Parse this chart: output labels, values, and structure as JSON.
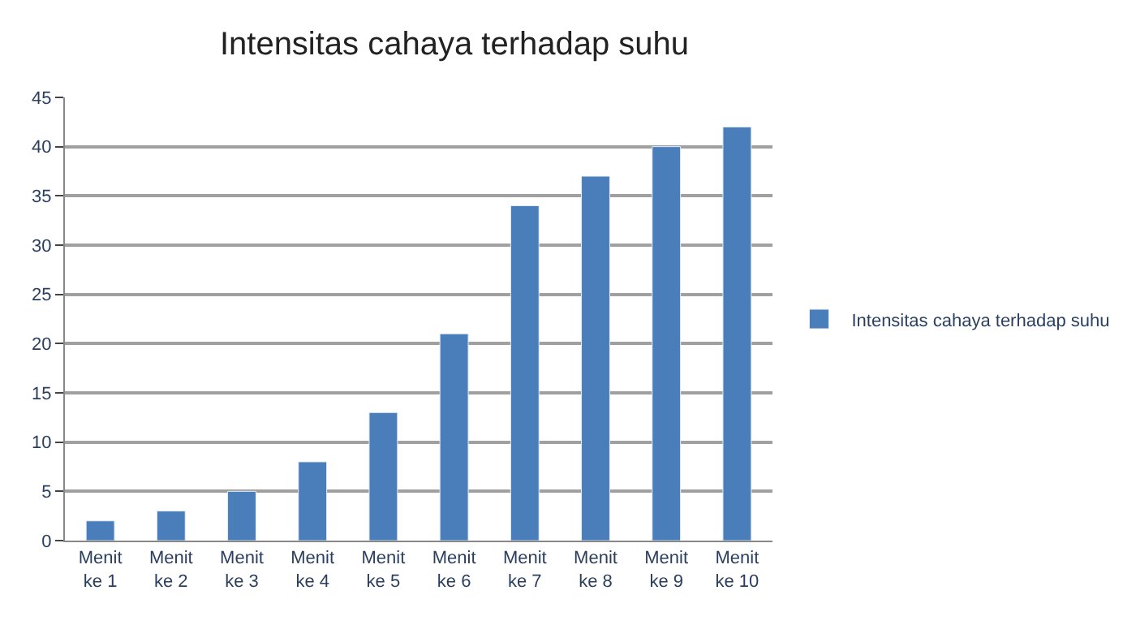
{
  "chart_data": {
    "type": "bar",
    "title": "Intensitas cahaya terhadap suhu",
    "categories": [
      "Menit ke 1",
      "Menit ke 2",
      "Menit ke 3",
      "Menit ke 4",
      "Menit ke 5",
      "Menit ke 6",
      "Menit ke 7",
      "Menit ke 8",
      "Menit ke 9",
      "Menit ke 10"
    ],
    "series": [
      {
        "name": "Intensitas cahaya terhadap suhu",
        "color": "#4a7ebb",
        "values": [
          2,
          3,
          5,
          8,
          13,
          21,
          34,
          37,
          40,
          42
        ]
      }
    ],
    "ylim": [
      0,
      45
    ],
    "yticks": [
      0,
      5,
      10,
      15,
      20,
      25,
      30,
      35,
      40,
      45
    ],
    "grid": "y",
    "legend": "right"
  }
}
